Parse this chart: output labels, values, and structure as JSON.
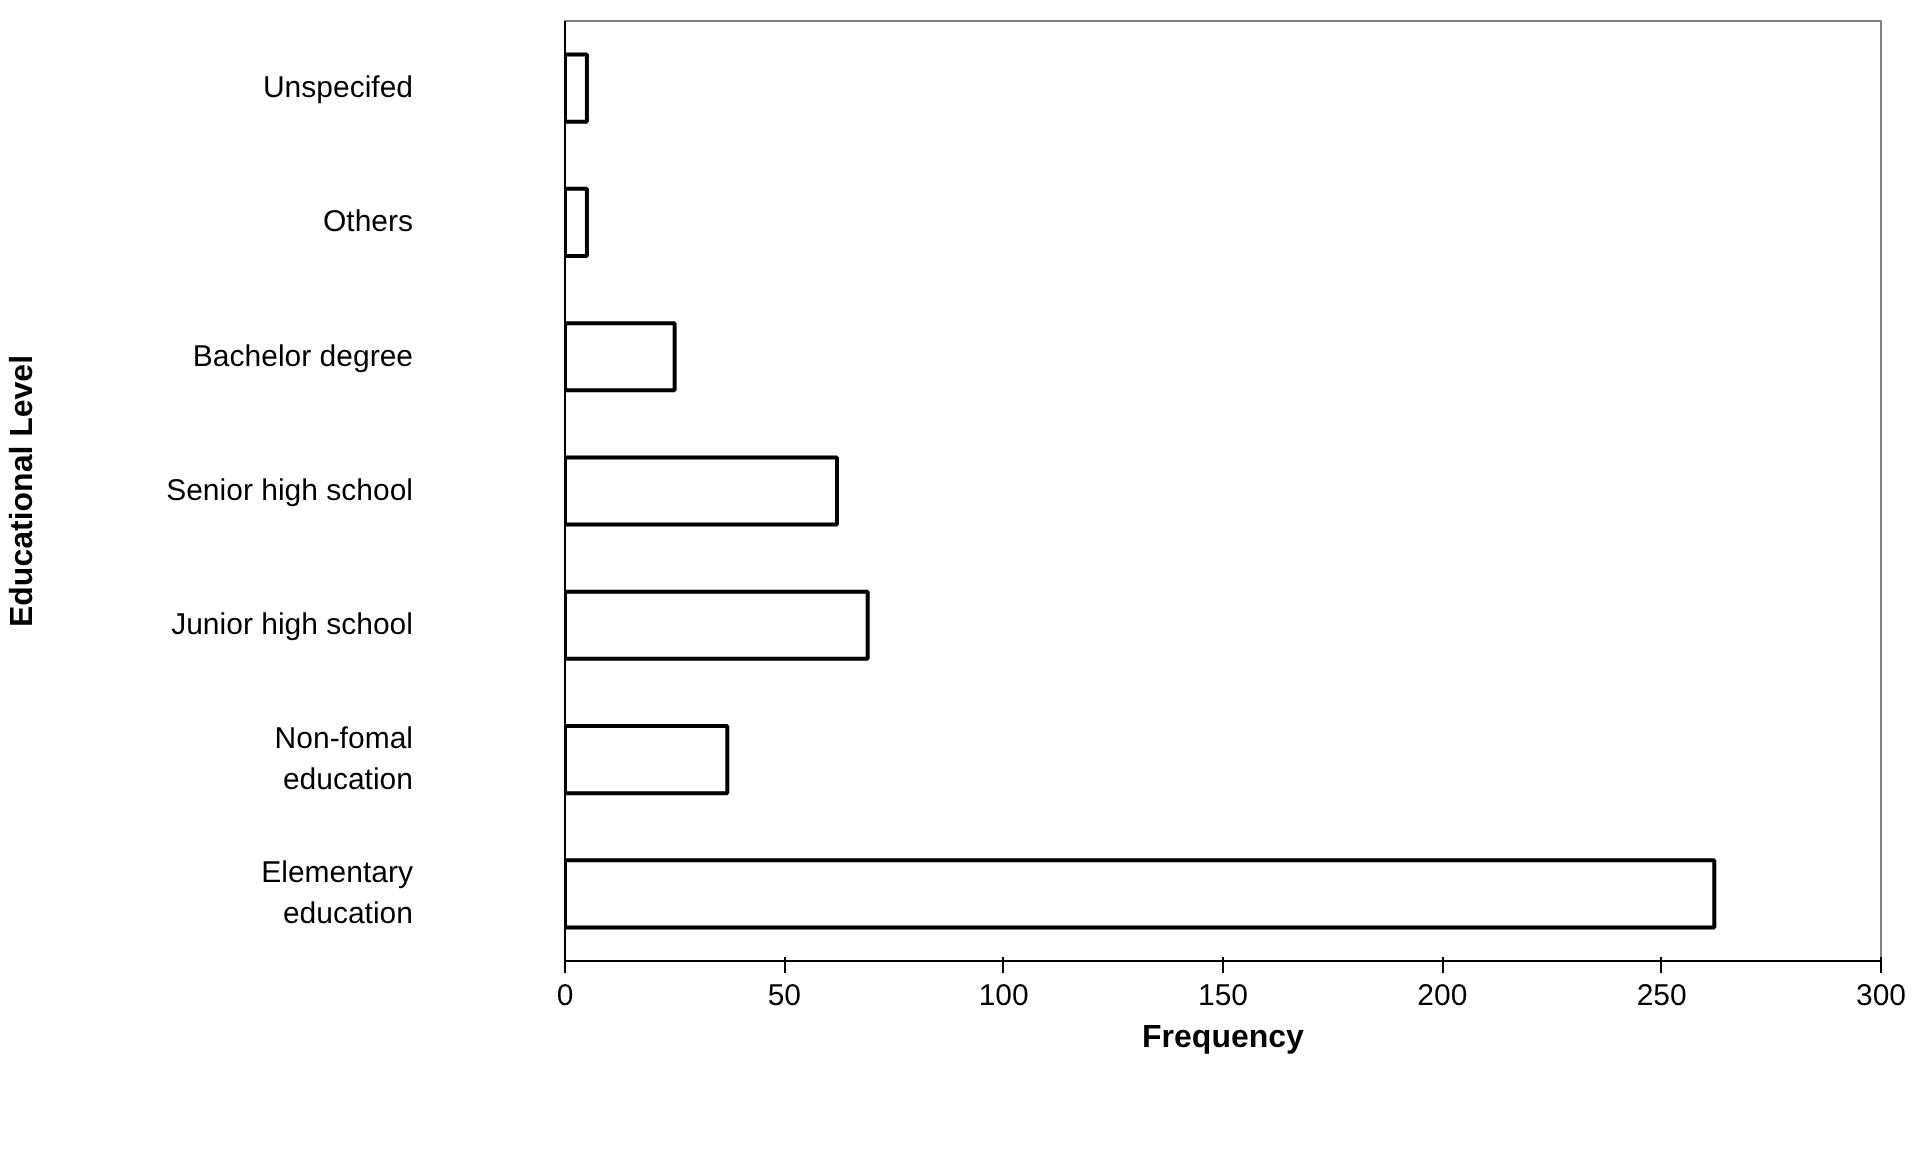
{
  "chart_data": {
    "type": "bar",
    "orientation": "horizontal",
    "xlabel": "Frequency",
    "ylabel": "Educational Level",
    "categories": [
      "Unspecifed",
      "Others",
      "Bachelor degree",
      "Senior high school",
      "Junior high school",
      "Non-fomal\neducation",
      "Elementary\neducation"
    ],
    "values": [
      5,
      5,
      25,
      62,
      69,
      37,
      262
    ],
    "color": "#ffffff",
    "xlim": [
      0,
      300
    ],
    "xticks": [
      0,
      50,
      100,
      150,
      200,
      250,
      300
    ],
    "grid": false
  }
}
